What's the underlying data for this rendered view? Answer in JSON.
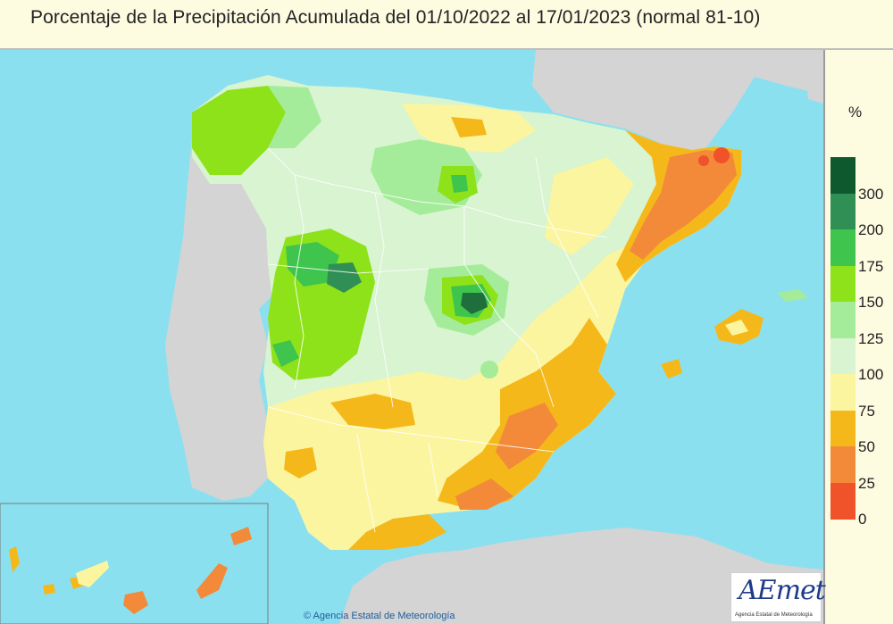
{
  "title": "Porcentaje de la Precipitación Acumulada del 01/10/2022 al 17/01/2023 (normal 81-10)",
  "legend": {
    "unit": "%",
    "classes": [
      {
        "label": "300",
        "color": "#0e5a2e"
      },
      {
        "label": "200",
        "color": "#2f8f55"
      },
      {
        "label": "175",
        "color": "#3fc44d"
      },
      {
        "label": "150",
        "color": "#8ee21a"
      },
      {
        "label": "125",
        "color": "#a4ec9a"
      },
      {
        "label": "100",
        "color": "#d8f4d0"
      },
      {
        "label": "75",
        "color": "#fbf5a0"
      },
      {
        "label": "50",
        "color": "#f5b81a"
      },
      {
        "label": "25",
        "color": "#f28a3a"
      },
      {
        "label": "0",
        "color": "#f0522a"
      }
    ]
  },
  "colors": {
    "sea": "#8be0f0",
    "land_neighbor": "#d4d4d4",
    "border_lines": "#ffffff"
  },
  "logo": {
    "text": "AEmet",
    "subtext": "Agencia Estatal de Meteorología"
  },
  "credit": "© Agencia Estatal de Meteorología"
}
